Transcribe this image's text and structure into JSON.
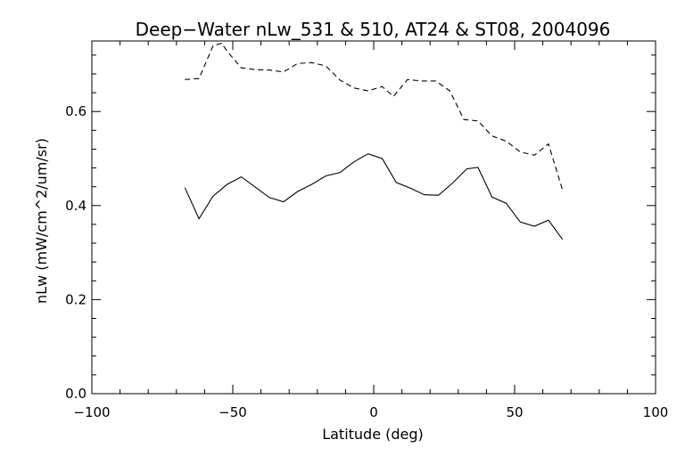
{
  "chart_data": {
    "type": "line",
    "title": "Deep−Water nLw_531 & 510, AT24 & ST08, 2004096",
    "xlabel": "Latitude (deg)",
    "ylabel": "nLw (mW/cm^2/um/sr)",
    "xlim": [
      -100,
      100
    ],
    "ylim": [
      0.0,
      0.75
    ],
    "x_ticks": [
      -100,
      -50,
      0,
      50,
      100
    ],
    "x_tick_labels": [
      "−100",
      "−50",
      "0",
      "50",
      "100"
    ],
    "y_ticks": [
      0.0,
      0.2,
      0.4,
      0.6
    ],
    "y_tick_labels": [
      "0.0",
      "0.2",
      "0.4",
      "0.6"
    ],
    "grid": false,
    "legend": "none",
    "series": [
      {
        "style": "dashed",
        "points": [
          [
            -67,
            0.668
          ],
          [
            -62,
            0.67
          ],
          [
            -57,
            0.74
          ],
          [
            -54,
            0.745
          ],
          [
            -52,
            0.728
          ],
          [
            -47,
            0.693
          ],
          [
            -42,
            0.689
          ],
          [
            -37,
            0.688
          ],
          [
            -32,
            0.684
          ],
          [
            -27,
            0.702
          ],
          [
            -22,
            0.704
          ],
          [
            -17,
            0.697
          ],
          [
            -12,
            0.667
          ],
          [
            -7,
            0.65
          ],
          [
            -2,
            0.644
          ],
          [
            3,
            0.653
          ],
          [
            7,
            0.632
          ],
          [
            12,
            0.668
          ],
          [
            17,
            0.665
          ],
          [
            22,
            0.665
          ],
          [
            27,
            0.644
          ],
          [
            32,
            0.583
          ],
          [
            37,
            0.58
          ],
          [
            42,
            0.548
          ],
          [
            47,
            0.537
          ],
          [
            52,
            0.514
          ],
          [
            57,
            0.507
          ],
          [
            62,
            0.531
          ],
          [
            67,
            0.433
          ]
        ]
      },
      {
        "style": "solid",
        "points": [
          [
            -67,
            0.438
          ],
          [
            -62,
            0.372
          ],
          [
            -57,
            0.42
          ],
          [
            -52,
            0.445
          ],
          [
            -47,
            0.461
          ],
          [
            -42,
            0.439
          ],
          [
            -37,
            0.417
          ],
          [
            -32,
            0.408
          ],
          [
            -27,
            0.43
          ],
          [
            -22,
            0.445
          ],
          [
            -17,
            0.463
          ],
          [
            -12,
            0.47
          ],
          [
            -7,
            0.493
          ],
          [
            -2,
            0.51
          ],
          [
            3,
            0.5
          ],
          [
            8,
            0.449
          ],
          [
            13,
            0.437
          ],
          [
            18,
            0.423
          ],
          [
            23,
            0.422
          ],
          [
            28,
            0.448
          ],
          [
            33,
            0.478
          ],
          [
            37,
            0.481
          ],
          [
            42,
            0.418
          ],
          [
            47,
            0.405
          ],
          [
            52,
            0.365
          ],
          [
            57,
            0.356
          ],
          [
            62,
            0.369
          ],
          [
            67,
            0.328
          ]
        ]
      }
    ]
  }
}
